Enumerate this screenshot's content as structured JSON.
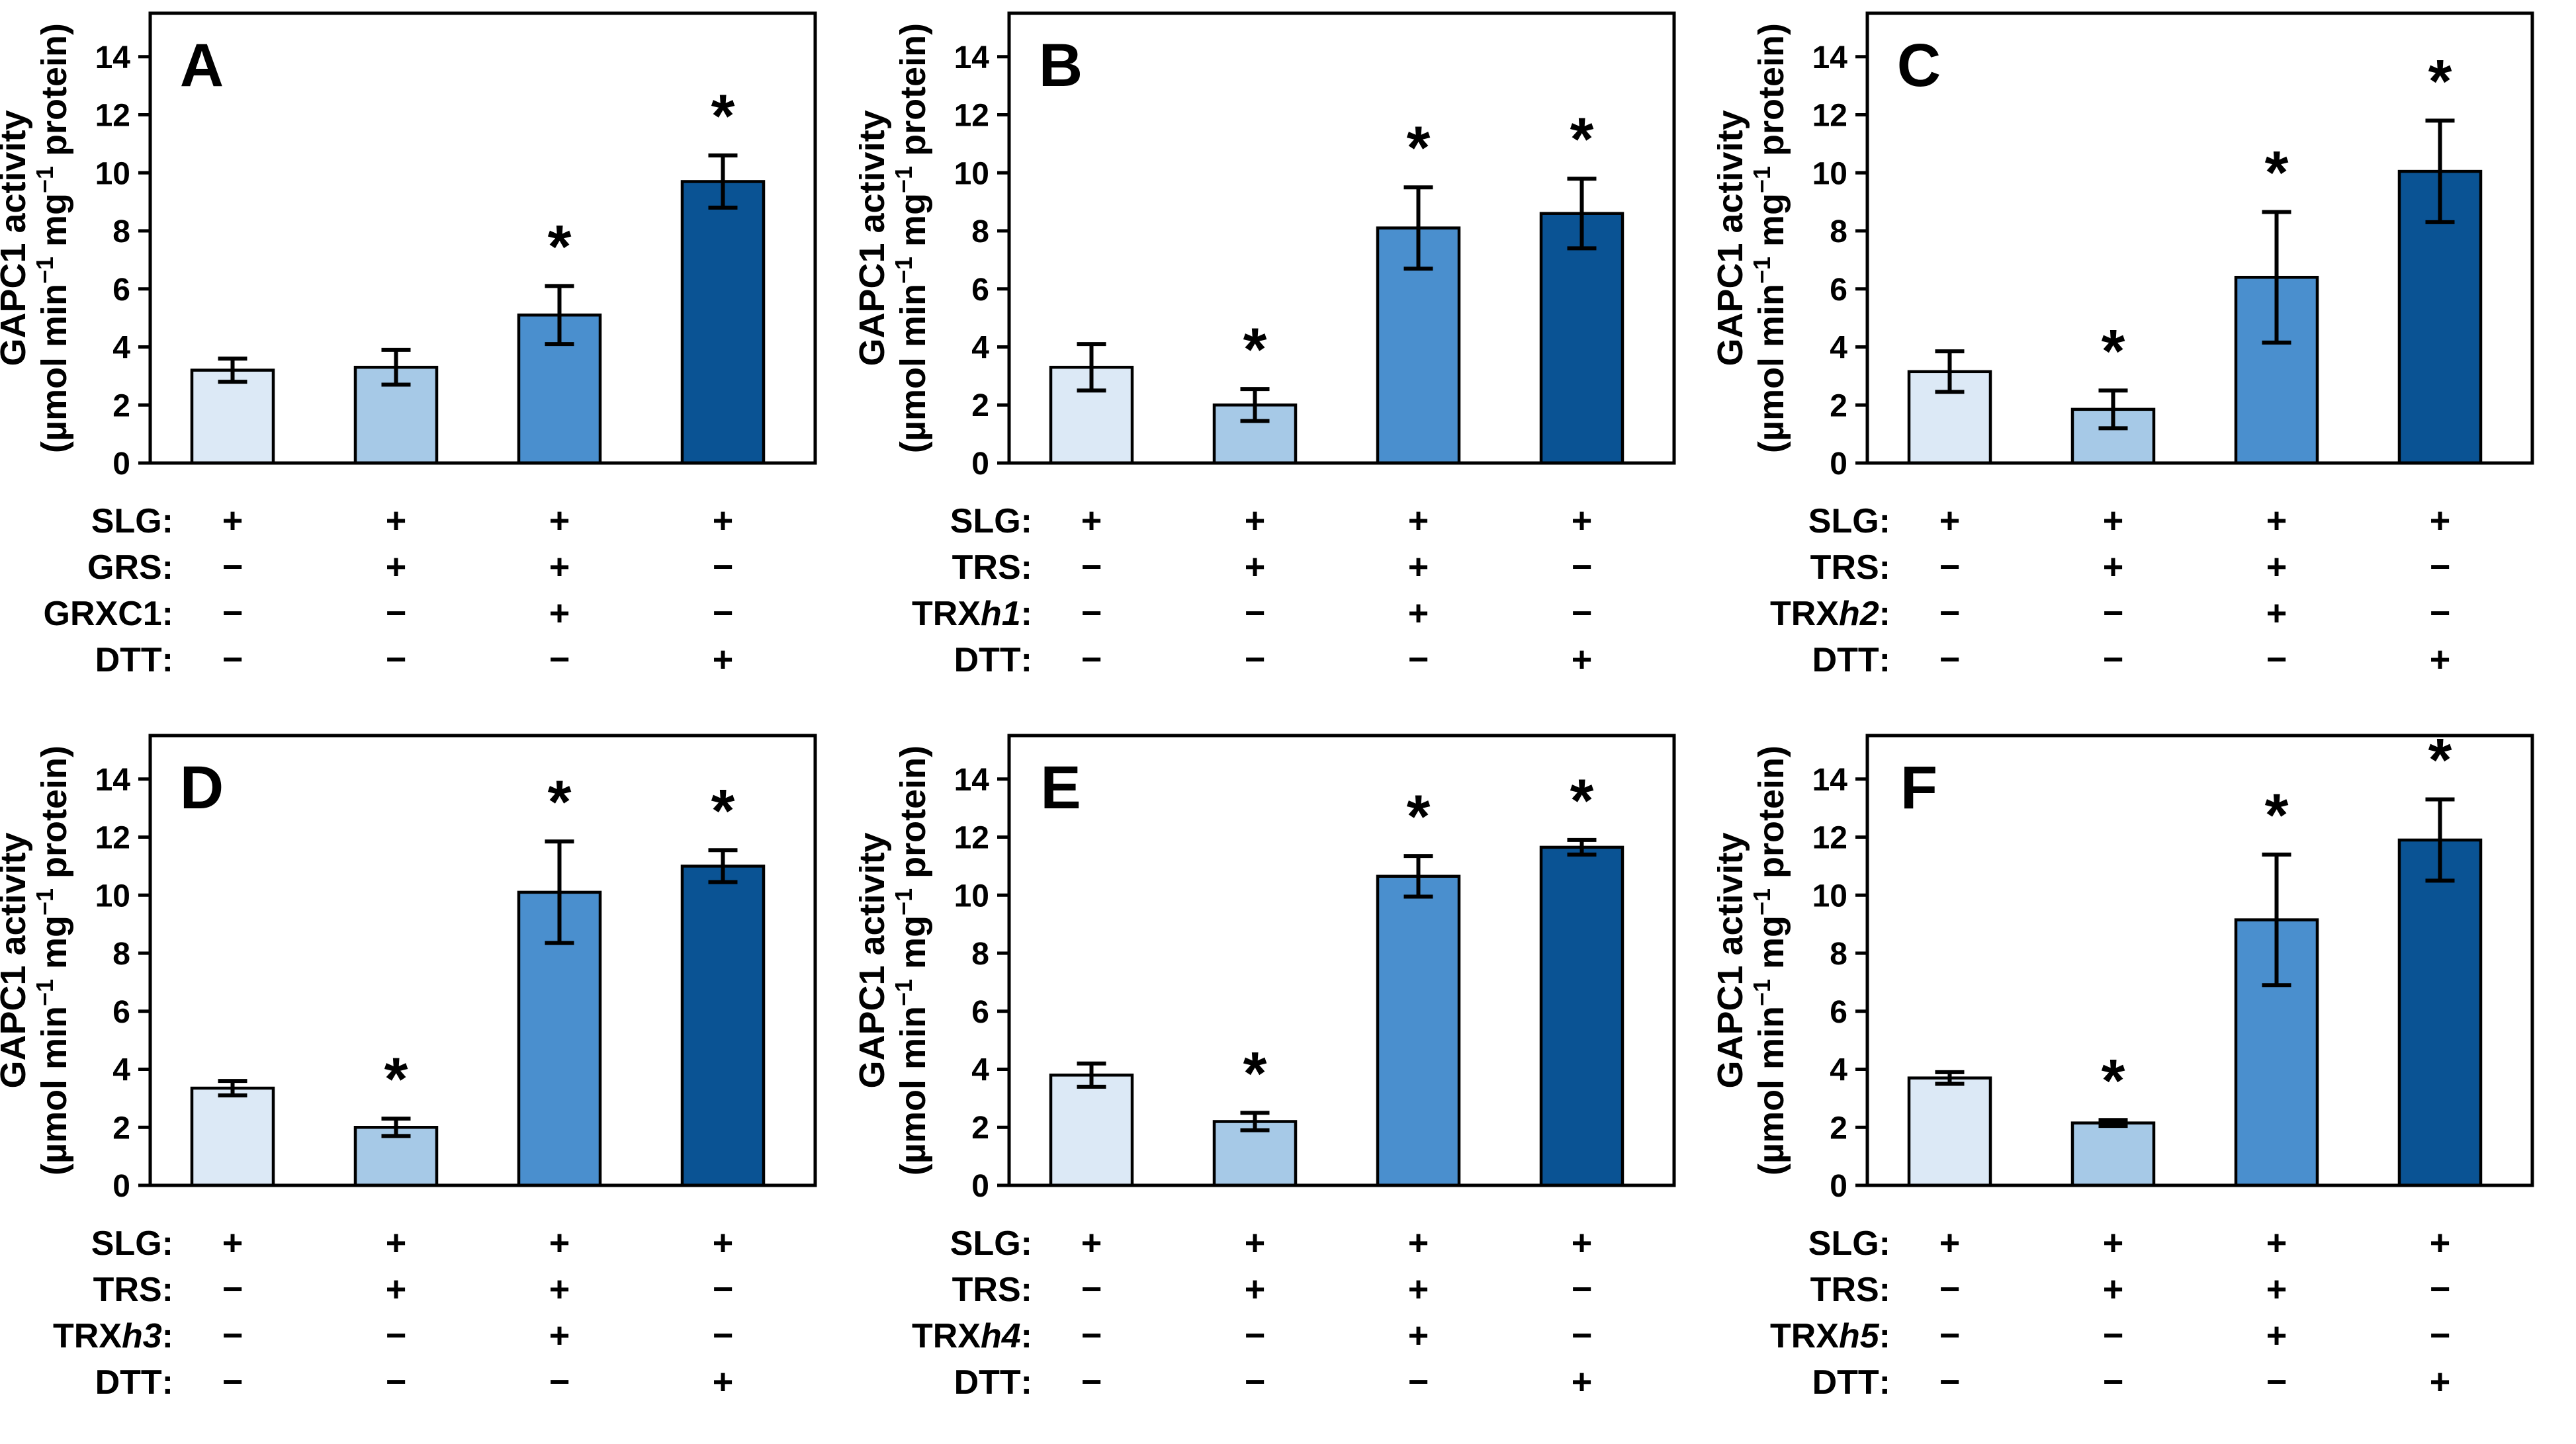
{
  "figure": {
    "background": "#ffffff",
    "bar_colors": [
      "#dce9f6",
      "#a6c9e7",
      "#4a8fce",
      "#0a5394"
    ],
    "bar_border_color": "#000000",
    "axis_color": "#000000",
    "significance_marker": "*",
    "y_axis": {
      "title_line1": "GAPC1 activity",
      "title_line2": "(µmol min⁻¹ mg⁻¹ protein)",
      "title_line2_parts": [
        "(µmol min",
        "−1",
        " mg",
        "−1",
        " protein)"
      ],
      "ticks": [
        0,
        2,
        4,
        6,
        8,
        10,
        12,
        14
      ],
      "min": 0,
      "max": 15.5,
      "grid": "off"
    }
  },
  "chart_data": [
    {
      "type": "bar",
      "title": "A",
      "ylabel": "GAPC1 activity (µmol min⁻¹ mg⁻¹ protein)",
      "ylim": [
        0,
        15.5
      ],
      "yticks": [
        0,
        2,
        4,
        6,
        8,
        10,
        12,
        14
      ],
      "values": [
        3.2,
        3.3,
        5.1,
        9.7
      ],
      "errors": [
        0.4,
        0.6,
        1.0,
        0.9
      ],
      "significant": [
        false,
        false,
        true,
        true
      ],
      "conditions": [
        {
          "pre": "SLG",
          "it": "",
          "post": ":",
          "vals": [
            "+",
            "+",
            "+",
            "+"
          ]
        },
        {
          "pre": "GRS",
          "it": "",
          "post": ":",
          "vals": [
            "−",
            "+",
            "+",
            "−"
          ]
        },
        {
          "pre": "GRXC1",
          "it": "",
          "post": ":",
          "vals": [
            "−",
            "−",
            "+",
            "−"
          ]
        },
        {
          "pre": "DTT",
          "it": "",
          "post": ":",
          "vals": [
            "−",
            "−",
            "−",
            "+"
          ]
        }
      ]
    },
    {
      "type": "bar",
      "title": "B",
      "ylabel": "GAPC1 activity (µmol min⁻¹ mg⁻¹ protein)",
      "ylim": [
        0,
        15.5
      ],
      "yticks": [
        0,
        2,
        4,
        6,
        8,
        10,
        12,
        14
      ],
      "values": [
        3.3,
        2.0,
        8.1,
        8.6
      ],
      "errors": [
        0.8,
        0.55,
        1.4,
        1.2
      ],
      "significant": [
        false,
        true,
        true,
        true
      ],
      "conditions": [
        {
          "pre": "SLG",
          "it": "",
          "post": ":",
          "vals": [
            "+",
            "+",
            "+",
            "+"
          ]
        },
        {
          "pre": "TRS",
          "it": "",
          "post": ":",
          "vals": [
            "−",
            "+",
            "+",
            "−"
          ]
        },
        {
          "pre": "TRX",
          "it": "h1",
          "post": ":",
          "vals": [
            "−",
            "−",
            "+",
            "−"
          ]
        },
        {
          "pre": "DTT",
          "it": "",
          "post": ":",
          "vals": [
            "−",
            "−",
            "−",
            "+"
          ]
        }
      ]
    },
    {
      "type": "bar",
      "title": "C",
      "ylabel": "GAPC1 activity (µmol min⁻¹ mg⁻¹ protein)",
      "ylim": [
        0,
        15.5
      ],
      "yticks": [
        0,
        2,
        4,
        6,
        8,
        10,
        12,
        14
      ],
      "values": [
        3.15,
        1.85,
        6.4,
        10.05
      ],
      "errors": [
        0.7,
        0.65,
        2.25,
        1.75
      ],
      "significant": [
        false,
        true,
        true,
        true
      ],
      "conditions": [
        {
          "pre": "SLG",
          "it": "",
          "post": ":",
          "vals": [
            "+",
            "+",
            "+",
            "+"
          ]
        },
        {
          "pre": "TRS",
          "it": "",
          "post": ":",
          "vals": [
            "−",
            "+",
            "+",
            "−"
          ]
        },
        {
          "pre": "TRX",
          "it": "h2",
          "post": ":",
          "vals": [
            "−",
            "−",
            "+",
            "−"
          ]
        },
        {
          "pre": "DTT",
          "it": "",
          "post": ":",
          "vals": [
            "−",
            "−",
            "−",
            "+"
          ]
        }
      ]
    },
    {
      "type": "bar",
      "title": "D",
      "ylabel": "GAPC1 activity (µmol min⁻¹ mg⁻¹ protein)",
      "ylim": [
        0,
        15.5
      ],
      "yticks": [
        0,
        2,
        4,
        6,
        8,
        10,
        12,
        14
      ],
      "values": [
        3.35,
        2.0,
        10.1,
        11.0
      ],
      "errors": [
        0.25,
        0.3,
        1.75,
        0.55
      ],
      "significant": [
        false,
        true,
        true,
        true
      ],
      "conditions": [
        {
          "pre": "SLG",
          "it": "",
          "post": ":",
          "vals": [
            "+",
            "+",
            "+",
            "+"
          ]
        },
        {
          "pre": "TRS",
          "it": "",
          "post": ":",
          "vals": [
            "−",
            "+",
            "+",
            "−"
          ]
        },
        {
          "pre": "TRX",
          "it": "h3",
          "post": ":",
          "vals": [
            "−",
            "−",
            "+",
            "−"
          ]
        },
        {
          "pre": "DTT",
          "it": "",
          "post": ":",
          "vals": [
            "−",
            "−",
            "−",
            "+"
          ]
        }
      ]
    },
    {
      "type": "bar",
      "title": "E",
      "ylabel": "GAPC1 activity (µmol min⁻¹ mg⁻¹ protein)",
      "ylim": [
        0,
        15.5
      ],
      "yticks": [
        0,
        2,
        4,
        6,
        8,
        10,
        12,
        14
      ],
      "values": [
        3.8,
        2.2,
        10.65,
        11.65
      ],
      "errors": [
        0.4,
        0.3,
        0.7,
        0.25
      ],
      "significant": [
        false,
        true,
        true,
        true
      ],
      "conditions": [
        {
          "pre": "SLG",
          "it": "",
          "post": ":",
          "vals": [
            "+",
            "+",
            "+",
            "+"
          ]
        },
        {
          "pre": "TRS",
          "it": "",
          "post": ":",
          "vals": [
            "−",
            "+",
            "+",
            "−"
          ]
        },
        {
          "pre": "TRX",
          "it": "h4",
          "post": ":",
          "vals": [
            "−",
            "−",
            "+",
            "−"
          ]
        },
        {
          "pre": "DTT",
          "it": "",
          "post": ":",
          "vals": [
            "−",
            "−",
            "−",
            "+"
          ]
        }
      ]
    },
    {
      "type": "bar",
      "title": "F",
      "ylabel": "GAPC1 activity (µmol min⁻¹ mg⁻¹ protein)",
      "ylim": [
        0,
        15.5
      ],
      "yticks": [
        0,
        2,
        4,
        6,
        8,
        10,
        12,
        14
      ],
      "values": [
        3.7,
        2.15,
        9.15,
        11.9
      ],
      "errors": [
        0.2,
        0.1,
        2.25,
        1.4
      ],
      "significant": [
        false,
        true,
        true,
        true
      ],
      "conditions": [
        {
          "pre": "SLG",
          "it": "",
          "post": ":",
          "vals": [
            "+",
            "+",
            "+",
            "+"
          ]
        },
        {
          "pre": "TRS",
          "it": "",
          "post": ":",
          "vals": [
            "−",
            "+",
            "+",
            "−"
          ]
        },
        {
          "pre": "TRX",
          "it": "h5",
          "post": ":",
          "vals": [
            "−",
            "−",
            "+",
            "−"
          ]
        },
        {
          "pre": "DTT",
          "it": "",
          "post": ":",
          "vals": [
            "−",
            "−",
            "−",
            "+"
          ]
        }
      ]
    }
  ]
}
